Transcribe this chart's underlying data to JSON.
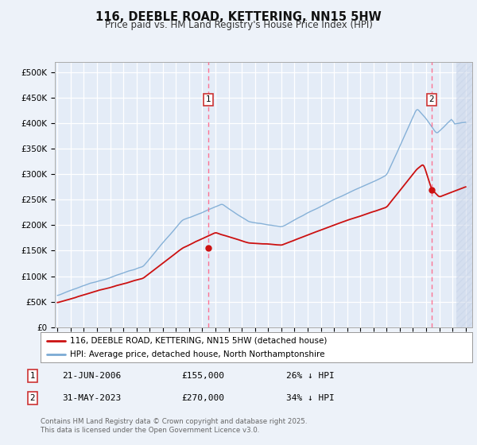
{
  "title": "116, DEEBLE ROAD, KETTERING, NN15 5HW",
  "subtitle": "Price paid vs. HM Land Registry's House Price Index (HPI)",
  "ylabel_ticks": [
    "£0",
    "£50K",
    "£100K",
    "£150K",
    "£200K",
    "£250K",
    "£300K",
    "£350K",
    "£400K",
    "£450K",
    "£500K"
  ],
  "ytick_values": [
    0,
    50000,
    100000,
    150000,
    200000,
    250000,
    300000,
    350000,
    400000,
    450000,
    500000
  ],
  "ylim": [
    0,
    520000
  ],
  "xlim_start": 1994.8,
  "xlim_end": 2026.5,
  "background_color": "#edf2f9",
  "plot_bg_color": "#e4ecf7",
  "grid_color": "#ffffff",
  "hpi_color": "#7baad4",
  "price_color": "#cc1111",
  "marker1_x": 2006.47,
  "marker1_y": 155000,
  "marker2_x": 2023.42,
  "marker2_y": 270000,
  "legend_line1": "116, DEEBLE ROAD, KETTERING, NN15 5HW (detached house)",
  "legend_line2": "HPI: Average price, detached house, North Northamptonshire",
  "annotation1_date": "21-JUN-2006",
  "annotation1_price": "£155,000",
  "annotation1_hpi": "26% ↓ HPI",
  "annotation2_date": "31-MAY-2023",
  "annotation2_price": "£270,000",
  "annotation2_hpi": "34% ↓ HPI",
  "footer": "Contains HM Land Registry data © Crown copyright and database right 2025.\nThis data is licensed under the Open Government Licence v3.0.",
  "hatch_start": 2025.3
}
